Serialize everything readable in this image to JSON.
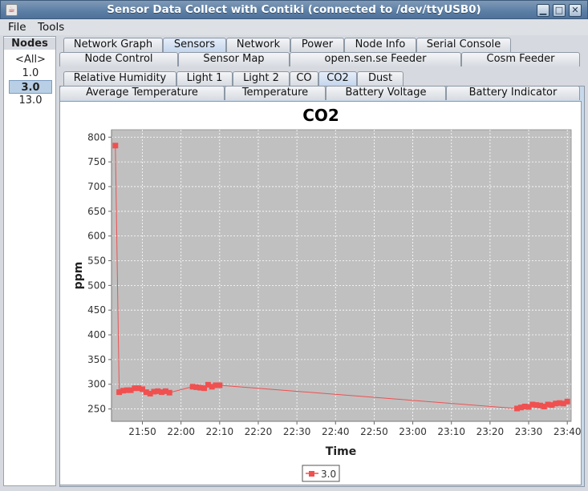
{
  "window": {
    "title": "Sensor Data Collect with Contiki (connected to /dev/ttyUSB0)",
    "icon": "java-icon",
    "buttons": [
      "minimize-icon",
      "maximize-icon",
      "close-icon"
    ]
  },
  "menubar": {
    "file": "File",
    "tools": "Tools"
  },
  "nodes": {
    "title": "Nodes",
    "items": [
      "<All>",
      "1.0",
      "3.0",
      "13.0"
    ],
    "selected": "3.0"
  },
  "main_tabs": {
    "row1": [
      "Network Graph",
      "Sensors",
      "Network",
      "Power",
      "Node Info",
      "Serial Console"
    ],
    "row2": [
      "Node Control",
      "Sensor Map",
      "open.sen.se Feeder",
      "Cosm Feeder"
    ],
    "selected": "Sensors"
  },
  "sensor_tabs": {
    "row1": [
      "Relative Humidity",
      "Light 1",
      "Light 2",
      "CO",
      "CO2",
      "Dust"
    ],
    "row2": [
      "Average Temperature",
      "Temperature",
      "Battery Voltage",
      "Battery Indicator"
    ],
    "selected": "CO2"
  },
  "colors": {
    "series": "#f05050",
    "plot_bg": "#c0c0c0",
    "selection": "#b8cfe5",
    "title_bar": "#5b7ea5"
  },
  "chart_data": {
    "type": "line",
    "title": "CO2",
    "xlabel": "Time",
    "ylabel": "ppm",
    "xlim": [
      "21:42",
      "23:41"
    ],
    "ylim": [
      225,
      815
    ],
    "x_ticks": [
      "21:50",
      "22:00",
      "22:10",
      "22:20",
      "22:30",
      "22:40",
      "22:50",
      "23:00",
      "23:10",
      "23:20",
      "23:30",
      "23:40"
    ],
    "y_ticks": [
      250,
      300,
      350,
      400,
      450,
      500,
      550,
      600,
      650,
      700,
      750,
      800
    ],
    "grid": true,
    "legend_position": "bottom",
    "series": [
      {
        "name": "3.0",
        "points": [
          [
            "21:43",
            783
          ],
          [
            "21:44",
            284
          ],
          [
            "21:45",
            287
          ],
          [
            "21:46",
            288
          ],
          [
            "21:47",
            288
          ],
          [
            "21:48",
            292
          ],
          [
            "21:49",
            292
          ],
          [
            "21:50",
            290
          ],
          [
            "21:51",
            284
          ],
          [
            "21:52",
            281
          ],
          [
            "21:53",
            285
          ],
          [
            "21:54",
            286
          ],
          [
            "21:55",
            284
          ],
          [
            "21:56",
            286
          ],
          [
            "21:57",
            283
          ],
          [
            "22:03",
            295
          ],
          [
            "22:04",
            294
          ],
          [
            "22:05",
            293
          ],
          [
            "22:06",
            292
          ],
          [
            "22:07",
            299
          ],
          [
            "22:08",
            295
          ],
          [
            "22:09",
            298
          ],
          [
            "22:10",
            298
          ],
          [
            "23:27",
            251
          ],
          [
            "23:28",
            253
          ],
          [
            "23:29",
            255
          ],
          [
            "23:30",
            254
          ],
          [
            "23:31",
            259
          ],
          [
            "23:32",
            258
          ],
          [
            "23:33",
            257
          ],
          [
            "23:34",
            255
          ],
          [
            "23:35",
            259
          ],
          [
            "23:36",
            258
          ],
          [
            "23:37",
            261
          ],
          [
            "23:38",
            262
          ],
          [
            "23:39",
            261
          ],
          [
            "23:40",
            265
          ]
        ]
      }
    ]
  }
}
